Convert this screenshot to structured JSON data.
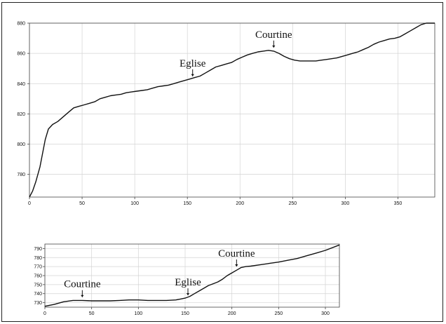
{
  "chart_data": [
    {
      "type": "line",
      "title": "",
      "xlabel": "",
      "ylabel": "",
      "xlim": [
        0,
        385
      ],
      "ylim": [
        765,
        880
      ],
      "xticks": [
        0,
        50,
        100,
        150,
        200,
        250,
        300,
        350
      ],
      "yticks": [
        780,
        800,
        820,
        840,
        860,
        880
      ],
      "grid": true,
      "series": [
        {
          "x": [
            0,
            3,
            6,
            10,
            15,
            18,
            22,
            27,
            32,
            37,
            42,
            47,
            52,
            57,
            62,
            67,
            72,
            77,
            82,
            87,
            92,
            97,
            102,
            107,
            112,
            117,
            122,
            127,
            132,
            137,
            142,
            147,
            152,
            157,
            162,
            167,
            172,
            177,
            182,
            187,
            192,
            197,
            202,
            207,
            212,
            217,
            222,
            227,
            232,
            237,
            242,
            247,
            252,
            257,
            262,
            267,
            272,
            277,
            282,
            287,
            292,
            297,
            302,
            307,
            312,
            317,
            322,
            327,
            332,
            337,
            342,
            347,
            352,
            357,
            362,
            367,
            372,
            377,
            382,
            385
          ],
          "y": [
            765,
            769,
            775,
            785,
            803,
            810,
            813,
            815,
            818,
            821,
            824,
            825,
            826,
            827,
            828,
            830,
            831,
            832,
            832.5,
            833,
            834,
            834.5,
            835,
            835.5,
            836,
            837,
            838,
            838.5,
            839,
            840,
            841,
            842,
            843,
            844,
            845,
            847,
            849,
            851,
            852,
            853,
            854,
            856,
            857.5,
            859,
            860,
            861,
            861.5,
            862,
            861.5,
            860,
            858,
            856.5,
            855.5,
            855,
            855,
            855,
            855,
            855.5,
            856,
            856.5,
            857,
            858,
            859,
            860,
            861,
            862.5,
            864,
            866,
            867.5,
            868.5,
            869.5,
            870,
            871,
            873,
            875,
            877,
            879,
            880,
            880,
            880
          ]
        }
      ],
      "annotations": [
        {
          "text": "Eglise",
          "x": 155,
          "y": 843
        },
        {
          "text": "Courtine",
          "x": 232,
          "y": 862
        }
      ]
    },
    {
      "type": "line",
      "title": "",
      "xlabel": "",
      "ylabel": "",
      "xlim": [
        0,
        315
      ],
      "ylim": [
        725,
        795
      ],
      "xticks": [
        0,
        50,
        100,
        150,
        200,
        250,
        300
      ],
      "yticks": [
        730,
        740,
        750,
        760,
        770,
        780,
        790
      ],
      "grid": true,
      "series": [
        {
          "x": [
            0,
            10,
            20,
            30,
            40,
            50,
            60,
            70,
            80,
            90,
            100,
            110,
            120,
            130,
            140,
            145,
            150,
            155,
            160,
            165,
            170,
            175,
            180,
            185,
            190,
            195,
            200,
            205,
            210,
            215,
            220,
            230,
            240,
            250,
            260,
            270,
            280,
            290,
            300,
            315
          ],
          "y": [
            726,
            728,
            731,
            732.5,
            732.5,
            732,
            732,
            732,
            732.5,
            733,
            733,
            732.5,
            732.5,
            732.5,
            733,
            734,
            735,
            737,
            740,
            743,
            746,
            749,
            751,
            753,
            756,
            760,
            763,
            766,
            769,
            770,
            770.5,
            772,
            773.5,
            775,
            777,
            779,
            782,
            785,
            788,
            794
          ]
        }
      ],
      "annotations": [
        {
          "text": "Courtine",
          "x": 40,
          "y": 733
        },
        {
          "text": "Eglise",
          "x": 153,
          "y": 735
        },
        {
          "text": "Courtine",
          "x": 205,
          "y": 767
        }
      ]
    }
  ]
}
